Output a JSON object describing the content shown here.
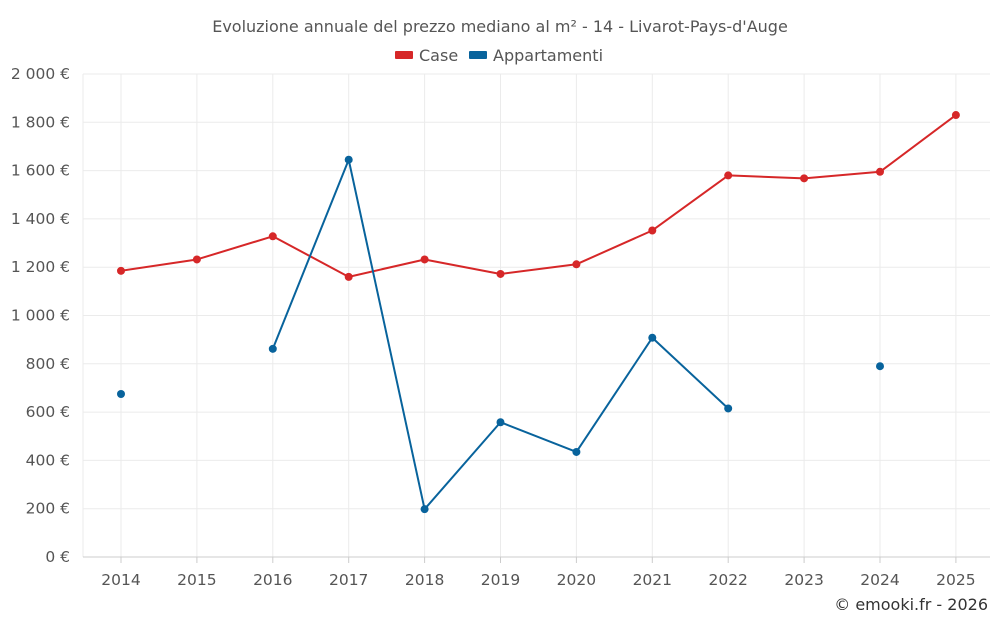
{
  "chart_data": {
    "type": "line",
    "title": "Evoluzione annuale del prezzo mediano al m² - 14 - Livarot-Pays-d'Auge",
    "categories": [
      "2014",
      "2015",
      "2016",
      "2017",
      "2018",
      "2019",
      "2020",
      "2021",
      "2022",
      "2023",
      "2024",
      "2025"
    ],
    "series": [
      {
        "name": "Case",
        "color": "#d62728",
        "values": [
          1185,
          1232,
          1328,
          1160,
          1232,
          1172,
          1212,
          1352,
          1580,
          1568,
          1595,
          1830
        ]
      },
      {
        "name": "Appartamenti",
        "color": "#08639c",
        "values": [
          675,
          null,
          862,
          1645,
          198,
          558,
          435,
          908,
          615,
          null,
          790,
          null
        ]
      }
    ],
    "ylim": [
      0,
      2000
    ],
    "yticks": [
      0,
      200,
      400,
      600,
      800,
      1000,
      1200,
      1400,
      1600,
      1800,
      2000
    ],
    "ytick_labels": [
      "0 €",
      "200 €",
      "400 €",
      "600 €",
      "800 €",
      "1 000 €",
      "1 200 €",
      "1 400 €",
      "1 600 €",
      "1 800 €",
      "2 000 €"
    ],
    "xlabel": "",
    "ylabel": "",
    "legend_position": "top-center",
    "grid": true
  },
  "credit": "© emooki.fr - 2026"
}
